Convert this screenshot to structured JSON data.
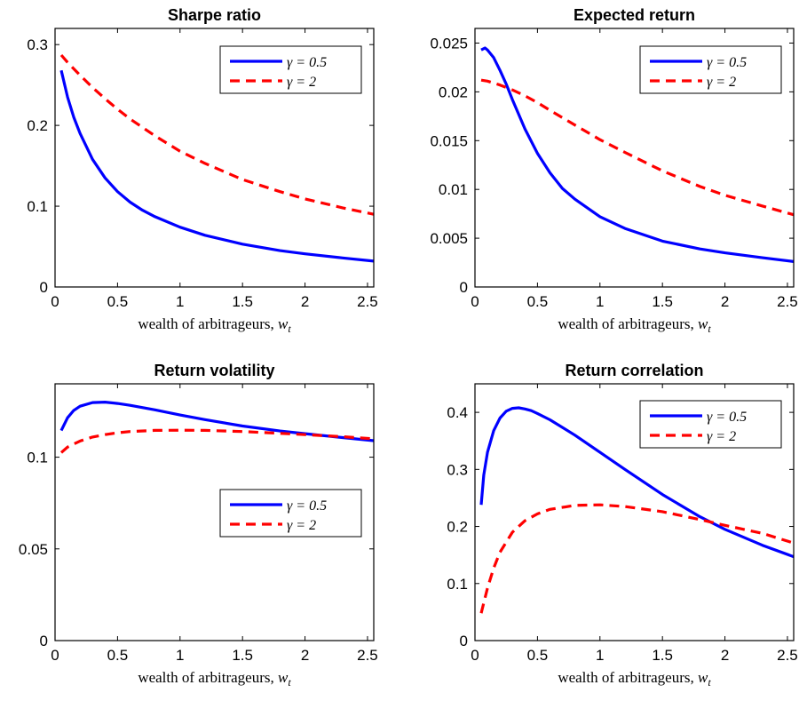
{
  "chart_data": [
    {
      "type": "line",
      "title": "Sharpe ratio",
      "xlabel": "wealth of arbitrageurs, w_t",
      "xlim": [
        0,
        2.55
      ],
      "ylim": [
        0,
        0.32
      ],
      "xticks": [
        0,
        0.5,
        1,
        1.5,
        2,
        2.5
      ],
      "xtick_labels": [
        "0",
        "0.5",
        "1",
        "1.5",
        "2",
        "2.5"
      ],
      "yticks": [
        0,
        0.1,
        0.2,
        0.3
      ],
      "ytick_labels": [
        "0",
        "0.1",
        "0.2",
        "0.3"
      ],
      "legend_position": "top-right",
      "grid": false,
      "series": [
        {
          "name": "γ = 0.5",
          "color": "#0000ff",
          "dash": "solid",
          "x": [
            0.05,
            0.1,
            0.15,
            0.2,
            0.3,
            0.4,
            0.5,
            0.6,
            0.7,
            0.8,
            1.0,
            1.2,
            1.5,
            1.8,
            2.0,
            2.3,
            2.55
          ],
          "y": [
            0.268,
            0.235,
            0.21,
            0.19,
            0.158,
            0.135,
            0.118,
            0.105,
            0.095,
            0.087,
            0.074,
            0.064,
            0.053,
            0.045,
            0.041,
            0.036,
            0.032
          ]
        },
        {
          "name": "γ = 2",
          "color": "#ff0000",
          "dash": "dashed",
          "x": [
            0.05,
            0.1,
            0.2,
            0.3,
            0.4,
            0.5,
            0.6,
            0.8,
            1.0,
            1.2,
            1.5,
            1.8,
            2.0,
            2.3,
            2.55
          ],
          "y": [
            0.287,
            0.278,
            0.262,
            0.247,
            0.233,
            0.22,
            0.208,
            0.187,
            0.168,
            0.153,
            0.133,
            0.118,
            0.109,
            0.098,
            0.09
          ]
        }
      ]
    },
    {
      "type": "line",
      "title": "Expected return",
      "xlabel": "wealth of arbitrageurs, w_t",
      "xlim": [
        0,
        2.55
      ],
      "ylim": [
        0,
        0.0265
      ],
      "xticks": [
        0,
        0.5,
        1,
        1.5,
        2,
        2.5
      ],
      "xtick_labels": [
        "0",
        "0.5",
        "1",
        "1.5",
        "2",
        "2.5"
      ],
      "yticks": [
        0,
        0.005,
        0.01,
        0.015,
        0.02,
        0.025
      ],
      "ytick_labels": [
        "0",
        "0.005",
        "0.01",
        "0.015",
        "0.02",
        "0.025"
      ],
      "legend_position": "top-right",
      "grid": false,
      "series": [
        {
          "name": "γ = 0.5",
          "color": "#0000ff",
          "dash": "solid",
          "x": [
            0.05,
            0.08,
            0.1,
            0.15,
            0.2,
            0.25,
            0.3,
            0.4,
            0.5,
            0.6,
            0.7,
            0.8,
            1.0,
            1.2,
            1.5,
            1.8,
            2.0,
            2.3,
            2.55
          ],
          "y": [
            0.0243,
            0.0245,
            0.0243,
            0.0235,
            0.0222,
            0.0208,
            0.0192,
            0.0162,
            0.0137,
            0.0117,
            0.0101,
            0.009,
            0.0072,
            0.006,
            0.0047,
            0.0039,
            0.0035,
            0.003,
            0.0026
          ]
        },
        {
          "name": "γ = 2",
          "color": "#ff0000",
          "dash": "dashed",
          "x": [
            0.05,
            0.1,
            0.2,
            0.3,
            0.4,
            0.5,
            0.6,
            0.8,
            1.0,
            1.2,
            1.5,
            1.8,
            2.0,
            2.3,
            2.55
          ],
          "y": [
            0.0212,
            0.0211,
            0.0207,
            0.0202,
            0.0196,
            0.0189,
            0.0181,
            0.0166,
            0.0151,
            0.0138,
            0.0119,
            0.0103,
            0.0094,
            0.0083,
            0.0074
          ]
        }
      ]
    },
    {
      "type": "line",
      "title": "Return volatility",
      "xlabel": "wealth of arbitrageurs, w_t",
      "xlim": [
        0,
        2.55
      ],
      "ylim": [
        0,
        0.14
      ],
      "xticks": [
        0,
        0.5,
        1,
        1.5,
        2,
        2.5
      ],
      "xtick_labels": [
        "0",
        "0.5",
        "1",
        "1.5",
        "2",
        "2.5"
      ],
      "yticks": [
        0,
        0.05,
        0.1
      ],
      "ytick_labels": [
        "0",
        "0.05",
        "0.1"
      ],
      "legend_position": "center-right",
      "grid": false,
      "series": [
        {
          "name": "γ = 0.5",
          "color": "#0000ff",
          "dash": "solid",
          "x": [
            0.05,
            0.1,
            0.15,
            0.2,
            0.3,
            0.4,
            0.5,
            0.6,
            0.8,
            1.0,
            1.2,
            1.5,
            1.8,
            2.0,
            2.3,
            2.55
          ],
          "y": [
            0.1145,
            0.1215,
            0.1255,
            0.1278,
            0.1298,
            0.13,
            0.1293,
            0.1283,
            0.1258,
            0.123,
            0.1205,
            0.117,
            0.1143,
            0.1128,
            0.1107,
            0.109
          ]
        },
        {
          "name": "γ = 2",
          "color": "#ff0000",
          "dash": "dashed",
          "x": [
            0.05,
            0.1,
            0.2,
            0.3,
            0.4,
            0.5,
            0.6,
            0.8,
            1.0,
            1.2,
            1.5,
            1.8,
            2.0,
            2.3,
            2.55
          ],
          "y": [
            0.1025,
            0.1055,
            0.1088,
            0.111,
            0.1123,
            0.1133,
            0.114,
            0.1146,
            0.1147,
            0.1146,
            0.114,
            0.113,
            0.1123,
            0.1112,
            0.11
          ]
        }
      ]
    },
    {
      "type": "line",
      "title": "Return correlation",
      "xlabel": "wealth of arbitrageurs, w_t",
      "xlim": [
        0,
        2.55
      ],
      "ylim": [
        0,
        0.45
      ],
      "xticks": [
        0,
        0.5,
        1,
        1.5,
        2,
        2.5
      ],
      "xtick_labels": [
        "0",
        "0.5",
        "1",
        "1.5",
        "2",
        "2.5"
      ],
      "yticks": [
        0,
        0.1,
        0.2,
        0.3,
        0.4
      ],
      "ytick_labels": [
        "0",
        "0.1",
        "0.2",
        "0.3",
        "0.4"
      ],
      "legend_position": "top-right",
      "grid": false,
      "series": [
        {
          "name": "γ = 0.5",
          "color": "#0000ff",
          "dash": "solid",
          "x": [
            0.05,
            0.07,
            0.1,
            0.15,
            0.2,
            0.25,
            0.3,
            0.35,
            0.4,
            0.45,
            0.5,
            0.6,
            0.8,
            1.0,
            1.2,
            1.5,
            1.8,
            2.0,
            2.3,
            2.55
          ],
          "y": [
            0.238,
            0.29,
            0.33,
            0.368,
            0.39,
            0.402,
            0.407,
            0.408,
            0.406,
            0.403,
            0.398,
            0.387,
            0.36,
            0.33,
            0.3,
            0.256,
            0.217,
            0.195,
            0.167,
            0.147
          ]
        },
        {
          "name": "γ = 2",
          "color": "#ff0000",
          "dash": "dashed",
          "x": [
            0.05,
            0.1,
            0.15,
            0.2,
            0.3,
            0.4,
            0.5,
            0.6,
            0.8,
            1.0,
            1.2,
            1.5,
            1.8,
            2.0,
            2.3,
            2.55
          ],
          "y": [
            0.048,
            0.092,
            0.127,
            0.155,
            0.19,
            0.21,
            0.222,
            0.23,
            0.237,
            0.238,
            0.235,
            0.226,
            0.212,
            0.202,
            0.188,
            0.171
          ]
        }
      ]
    }
  ]
}
